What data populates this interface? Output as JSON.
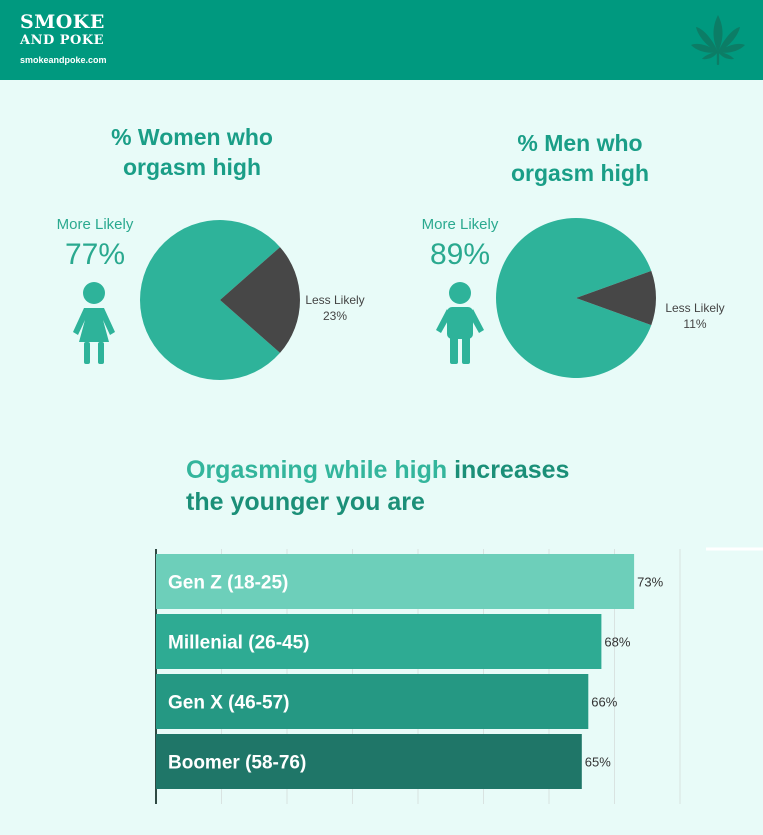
{
  "header": {
    "brand_line1": "SMOKE",
    "brand_line2": "AND POKE",
    "url": "smokeandpoke.com",
    "logo_icon": "cannabis-leaf-icon"
  },
  "women": {
    "title_line1": "% Women who",
    "title_line2": "orgasm high",
    "more_label": "More Likely",
    "more_value": "77%",
    "less_label": "Less Likely",
    "less_value": "23%",
    "icon": "woman-icon"
  },
  "men": {
    "title_line1": "% Men who",
    "title_line2": "orgasm high",
    "more_label": "More Likely",
    "more_value": "89%",
    "less_label": "Less Likely",
    "less_value": "11%",
    "icon": "man-icon"
  },
  "bar_section": {
    "title_part1": "Orgasming while high",
    "title_part2": " increases",
    "title_line2": "the younger you are"
  },
  "colors": {
    "header": "#00997f",
    "background": "#e8fbf8",
    "pie_more": "#2eb39a",
    "pie_less": "#474747",
    "bars": [
      "#6dcfba",
      "#2eab93",
      "#259883",
      "#1f7668"
    ]
  },
  "chart_data": [
    {
      "type": "pie",
      "title": "% Women who orgasm high",
      "labels": [
        "More Likely",
        "Less Likely"
      ],
      "values": [
        77,
        23
      ]
    },
    {
      "type": "pie",
      "title": "% Men who orgasm high",
      "labels": [
        "More Likely",
        "Less Likely"
      ],
      "values": [
        89,
        11
      ]
    },
    {
      "type": "bar",
      "orientation": "horizontal",
      "title": "Orgasming while high increases the younger you are",
      "categories": [
        "Gen Z (18-25)",
        "Millenial (26-45)",
        "Gen X (46-57)",
        "Boomer  (58-76)"
      ],
      "values": [
        73,
        68,
        66,
        65
      ],
      "data_labels": [
        "73%",
        "68%",
        "66%",
        "65%"
      ],
      "xlim": [
        0,
        80
      ],
      "grid": true
    }
  ]
}
